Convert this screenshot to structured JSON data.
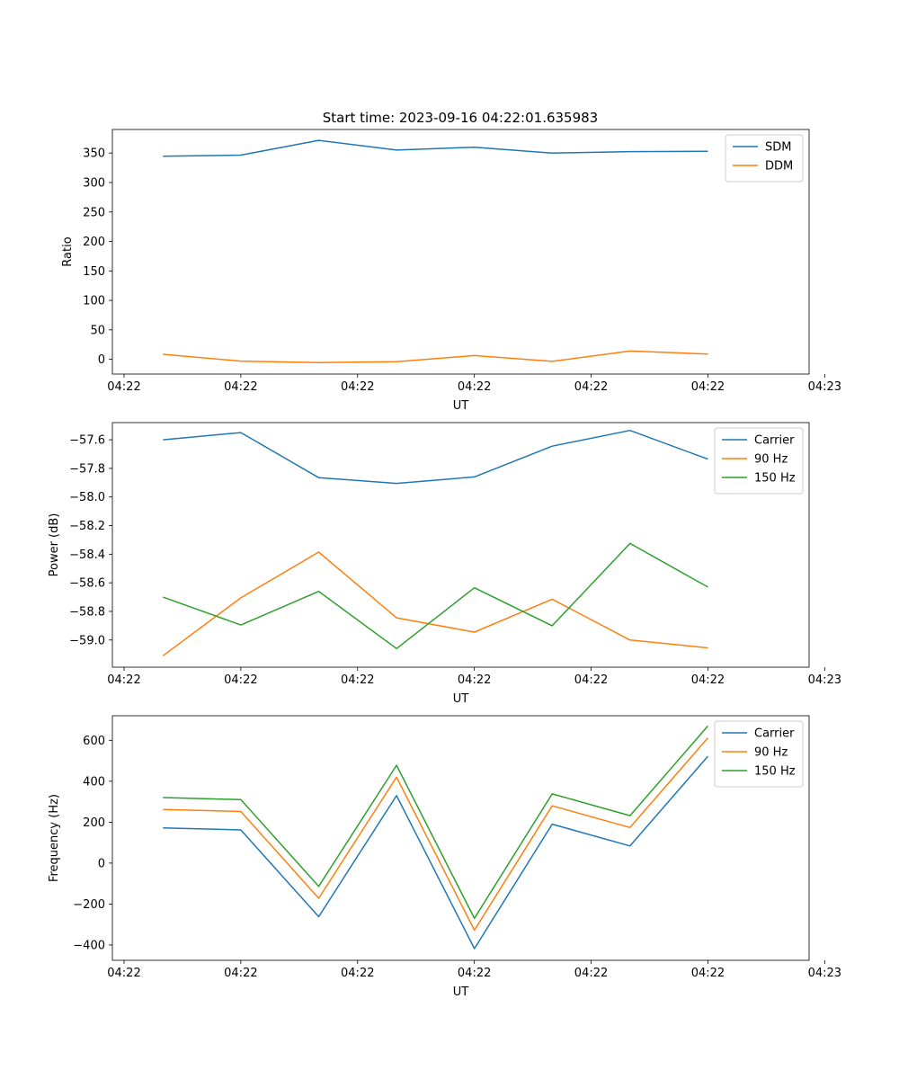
{
  "title": "Start time: 2023-09-16 04:22:01.635983",
  "chart_data": [
    {
      "type": "line",
      "title": "Start time: 2023-09-16 04:22:01.635983",
      "xlabel": "UT",
      "ylabel": "Ratio",
      "x": [
        1,
        2,
        3,
        4,
        5,
        6,
        7,
        8
      ],
      "xlim": [
        0.35,
        9.3
      ],
      "x_ticks": [
        0.5,
        2.0,
        3.5,
        5.0,
        6.5,
        8.0,
        9.5
      ],
      "x_tick_labels": [
        "04:22",
        "04:22",
        "04:22",
        "04:22",
        "04:22",
        "04:22",
        "04:23"
      ],
      "ylim": [
        -25,
        390
      ],
      "y_ticks": [
        0,
        50,
        100,
        150,
        200,
        250,
        300,
        350
      ],
      "y_tick_labels": [
        "0",
        "50",
        "100",
        "150",
        "200",
        "250",
        "300",
        "350"
      ],
      "legend_position": "top-right",
      "series": [
        {
          "name": "SDM",
          "color": "#1f77b4",
          "values": [
            344.5,
            346.5,
            371.5,
            355.0,
            360.0,
            350.0,
            352.5,
            353.0
          ]
        },
        {
          "name": "DDM",
          "color": "#ff7f0e",
          "values": [
            8.5,
            -3.0,
            -5.5,
            -4.0,
            6.5,
            -3.5,
            14.0,
            9.0
          ]
        }
      ]
    },
    {
      "type": "line",
      "title": "",
      "xlabel": "UT",
      "ylabel": "Power (dB)",
      "x": [
        1,
        2,
        3,
        4,
        5,
        6,
        7,
        8
      ],
      "xlim": [
        0.35,
        9.3
      ],
      "x_ticks": [
        0.5,
        2.0,
        3.5,
        5.0,
        6.5,
        8.0,
        9.5
      ],
      "x_tick_labels": [
        "04:22",
        "04:22",
        "04:22",
        "04:22",
        "04:22",
        "04:22",
        "04:23"
      ],
      "ylim": [
        -59.19,
        -57.48
      ],
      "y_ticks": [
        -59.0,
        -58.8,
        -58.6,
        -58.4,
        -58.2,
        -58.0,
        -57.8,
        -57.6
      ],
      "y_tick_labels": [
        "−59.0",
        "−58.8",
        "−58.6",
        "−58.4",
        "−58.2",
        "−58.0",
        "−57.8",
        "−57.6"
      ],
      "legend_position": "top-right",
      "series": [
        {
          "name": "Carrier",
          "color": "#1f77b4",
          "values": [
            -57.6,
            -57.55,
            -57.865,
            -57.905,
            -57.86,
            -57.645,
            -57.535,
            -57.735
          ]
        },
        {
          "name": "90 Hz",
          "color": "#ff7f0e",
          "values": [
            -59.11,
            -58.705,
            -58.385,
            -58.845,
            -58.945,
            -58.715,
            -59.0,
            -59.055
          ]
        },
        {
          "name": "150 Hz",
          "color": "#2ca02c",
          "values": [
            -58.7,
            -58.895,
            -58.66,
            -59.06,
            -58.635,
            -58.9,
            -58.325,
            -58.63
          ]
        }
      ]
    },
    {
      "type": "line",
      "title": "",
      "xlabel": "UT",
      "ylabel": "Frequency (Hz)",
      "x": [
        1,
        2,
        3,
        4,
        5,
        6,
        7,
        8
      ],
      "xlim": [
        0.35,
        9.3
      ],
      "x_ticks": [
        0.5,
        2.0,
        3.5,
        5.0,
        6.5,
        8.0,
        9.5
      ],
      "x_tick_labels": [
        "04:22",
        "04:22",
        "04:22",
        "04:22",
        "04:22",
        "04:22",
        "04:23"
      ],
      "ylim": [
        -475,
        720
      ],
      "y_ticks": [
        -400,
        -200,
        0,
        200,
        400,
        600
      ],
      "y_tick_labels": [
        "−400",
        "−200",
        "0",
        "200",
        "400",
        "600"
      ],
      "legend_position": "top-right",
      "series": [
        {
          "name": "Carrier",
          "color": "#1f77b4",
          "values": [
            172,
            162,
            -262,
            330,
            -418,
            190,
            84,
            522
          ]
        },
        {
          "name": "90 Hz",
          "color": "#ff7f0e",
          "values": [
            262,
            252,
            -172,
            420,
            -328,
            280,
            174,
            612
          ]
        },
        {
          "name": "150 Hz",
          "color": "#2ca02c",
          "values": [
            320,
            310,
            -114,
            478,
            -270,
            338,
            232,
            670
          ]
        }
      ]
    }
  ]
}
